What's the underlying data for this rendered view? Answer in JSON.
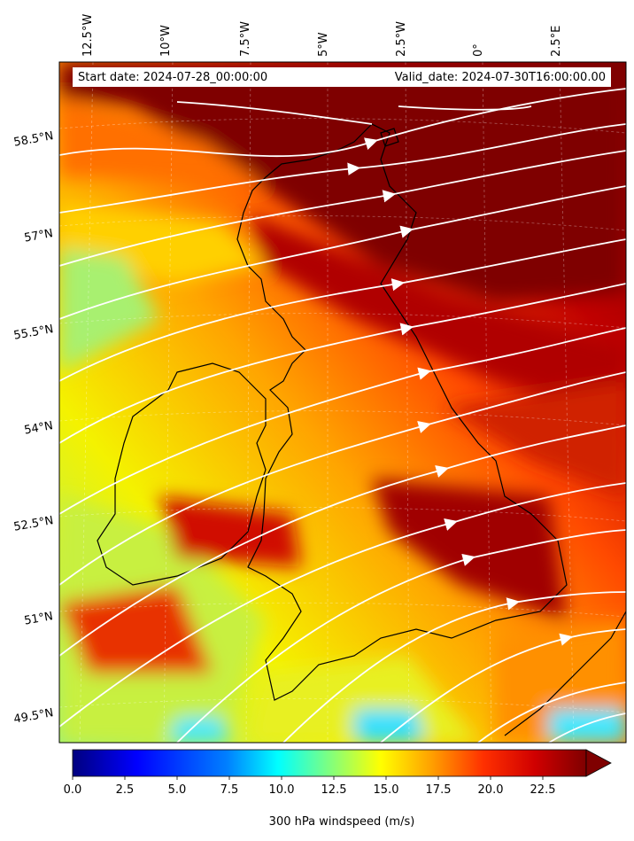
{
  "map": {
    "start_date": "Start date: 2024-07-28_00:00:00",
    "valid_date": "Valid_date: 2024-07-30T16:00:00.00",
    "longitude_labels": [
      "12.5°W",
      "10°W",
      "7.5°W",
      "5°W",
      "2.5°W",
      "0°",
      "2.5°E"
    ],
    "latitude_labels": [
      "58.5°N",
      "57°N",
      "55.5°N",
      "54°N",
      "52.5°N",
      "51°N",
      "49.5°N"
    ],
    "colorbar": {
      "label": "300 hPa windspeed (m/s)",
      "ticks": [
        "0.0",
        "2.5",
        "5.0",
        "7.5",
        "10.0",
        "12.5",
        "15.0",
        "17.5",
        "20.0",
        "22.5"
      ],
      "min": 0,
      "max": 25,
      "extend": "max",
      "colormap": [
        "#00007f",
        "#0000ff",
        "#007fff",
        "#00ffff",
        "#7fff7f",
        "#ffff00",
        "#ff7f00",
        "#ff0000",
        "#7f0000"
      ]
    },
    "coastline_color": "#000000",
    "streamline_color": "#ffffff"
  }
}
